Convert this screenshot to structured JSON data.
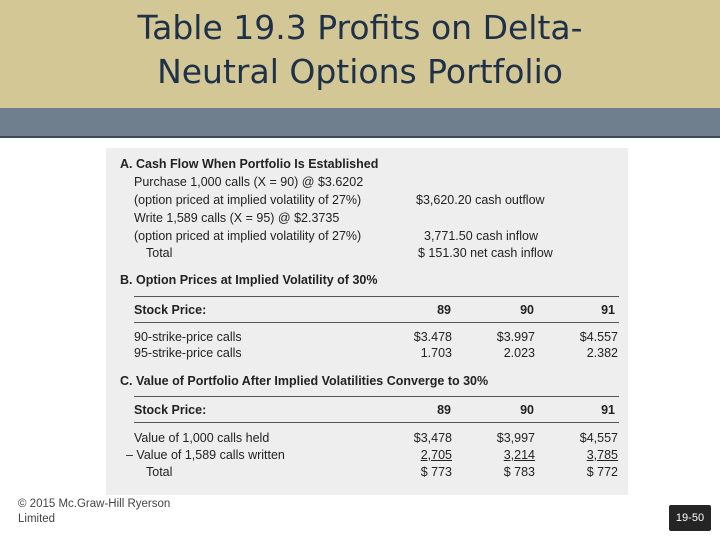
{
  "slide": {
    "title_line1": "Table 19.3 Profits on Delta-",
    "title_line2": "Neutral Options Portfolio",
    "footer_line1": "© 2015 Mc.Graw-Hill Ryerson",
    "footer_line2": "Limited",
    "page_number": "19-50"
  },
  "table": {
    "section_a": {
      "heading": "A.  Cash Flow When Portfolio Is Established",
      "purchase": "Purchase 1,000 calls (X = 90) @ $3.6202",
      "purchase_note": "(option priced at implied volatility of 27%)",
      "purchase_amount": "$3,620.20 cash outflow",
      "write": "Write 1,589 calls (X = 95) @ $2.3735",
      "write_note": "(option priced at implied volatility of 27%)",
      "write_amount": "3,771.50 cash inflow",
      "total_label": "Total",
      "total_amount": "$   151.30 net cash inflow"
    },
    "section_b": {
      "heading": "B.  Option Prices at Implied Volatility of 30%",
      "header_label": "Stock Price:",
      "columns": [
        "89",
        "90",
        "91"
      ],
      "rows": [
        {
          "label": "90-strike-price calls",
          "values": [
            "$3.478",
            "$3.997",
            "$4.557"
          ]
        },
        {
          "label": "95-strike-price calls",
          "values": [
            "1.703",
            "2.023",
            "2.382"
          ]
        }
      ]
    },
    "section_c": {
      "heading": "C.  Value of Portfolio After Implied Volatilities Converge to 30%",
      "header_label": "Stock Price:",
      "columns": [
        "89",
        "90",
        "91"
      ],
      "rows": [
        {
          "label": "Value of 1,000 calls held",
          "values": [
            "$3,478",
            "$3,997",
            "$4,557"
          ]
        },
        {
          "label": "– Value of 1,589 calls written",
          "values": [
            "2,705",
            "3,214",
            "3,785"
          ]
        },
        {
          "label": "Total",
          "values": [
            "$   773",
            "$   783",
            "$   772"
          ]
        }
      ]
    }
  }
}
